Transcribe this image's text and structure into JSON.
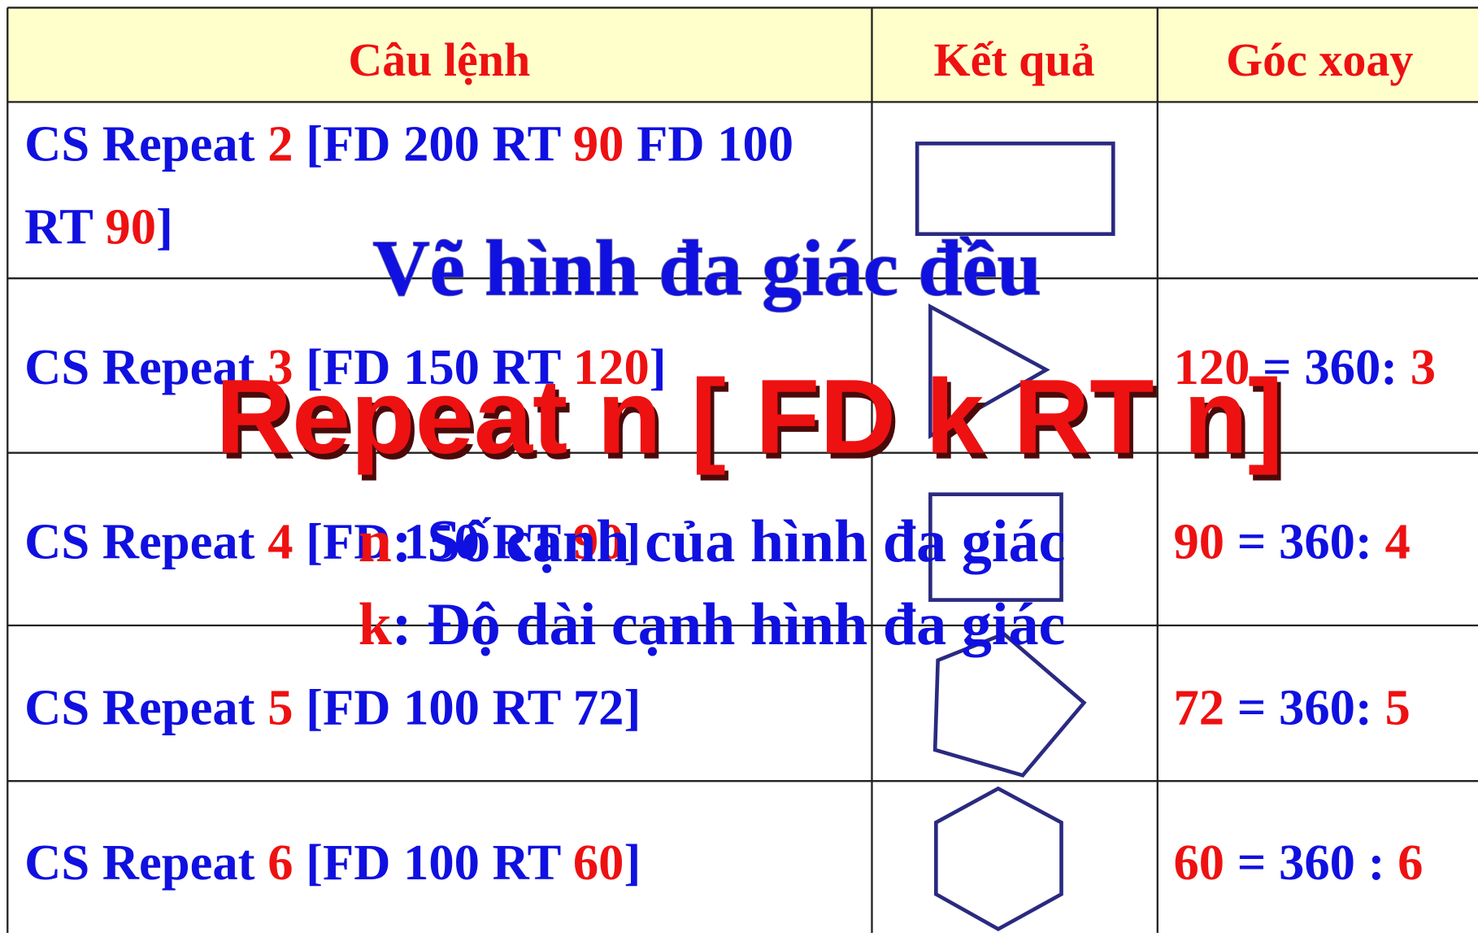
{
  "table": {
    "header": [
      "Câu lệnh",
      "Kết quả",
      "Góc xoay"
    ],
    "rows": [
      {
        "command": [
          [
            {
              "text": "CS Repeat ",
              "color": "#1010e0"
            },
            {
              "text": "2",
              "color": "#ee1111"
            },
            {
              "text": " [FD 200 RT ",
              "color": "#1010e0"
            },
            {
              "text": "90",
              "color": "#ee1111"
            },
            {
              "text": " FD 100",
              "color": "#1010e0"
            }
          ],
          [
            {
              "text": "RT ",
              "color": "#1010e0"
            },
            {
              "text": "90",
              "color": "#ee1111"
            },
            {
              "text": "]",
              "color": "#1010e0"
            }
          ]
        ],
        "angle": []
      },
      {
        "command": [
          [
            {
              "text": "CS Repeat ",
              "color": "#1010e0"
            },
            {
              "text": "3",
              "color": "#ee1111"
            },
            {
              "text": " [FD 150 RT ",
              "color": "#1010e0"
            },
            {
              "text": "120",
              "color": "#ee1111"
            },
            {
              "text": "]",
              "color": "#1010e0"
            }
          ]
        ],
        "angle": [
          {
            "text": "120",
            "color": "#ee1111"
          },
          {
            "text": " = 360: ",
            "color": "#1010e0"
          },
          {
            "text": "3",
            "color": "#ee1111"
          }
        ]
      },
      {
        "command": [
          [
            {
              "text": "CS Repeat ",
              "color": "#1010e0"
            },
            {
              "text": "4",
              "color": "#ee1111"
            },
            {
              "text": " [FD 150 RT ",
              "color": "#1010e0"
            },
            {
              "text": "90",
              "color": "#ee1111"
            },
            {
              "text": "]",
              "color": "#1010e0"
            }
          ]
        ],
        "angle": [
          {
            "text": "90",
            "color": "#ee1111"
          },
          {
            "text": " = 360: ",
            "color": "#1010e0"
          },
          {
            "text": "4",
            "color": "#ee1111"
          }
        ]
      },
      {
        "command": [
          [
            {
              "text": "CS Repeat ",
              "color": "#1010e0"
            },
            {
              "text": "5",
              "color": "#ee1111"
            },
            {
              "text": " [FD 100 RT 72]",
              "color": "#1010e0"
            }
          ]
        ],
        "angle": [
          {
            "text": "72",
            "color": "#ee1111"
          },
          {
            "text": " = 360: ",
            "color": "#1010e0"
          },
          {
            "text": "5",
            "color": "#ee1111"
          }
        ]
      },
      {
        "command": [
          [
            {
              "text": "CS Repeat ",
              "color": "#1010e0"
            },
            {
              "text": "6",
              "color": "#ee1111"
            },
            {
              "text": " [FD 100 RT ",
              "color": "#1010e0"
            },
            {
              "text": "60",
              "color": "#ee1111"
            },
            {
              "text": "]",
              "color": "#1010e0"
            }
          ]
        ],
        "angle": [
          {
            "text": "60",
            "color": "#ee1111"
          },
          {
            "text": " = 360 : ",
            "color": "#1010e0"
          },
          {
            "text": "6",
            "color": "#ee1111"
          }
        ]
      }
    ]
  },
  "overlay": {
    "title": "Vẽ hình đa giác đều",
    "formula": "Repeat n [ FD k RT n]",
    "notes": [
      [
        {
          "text": "n",
          "color": "#ee1111"
        },
        {
          "text": ": Số cạnh của hình đa giác",
          "color": "#1010e0"
        }
      ],
      [
        {
          "text": "k",
          "color": "#ee1111"
        },
        {
          "text": ": Độ dài cạnh hình đa giác",
          "color": "#1010e0"
        }
      ]
    ]
  }
}
